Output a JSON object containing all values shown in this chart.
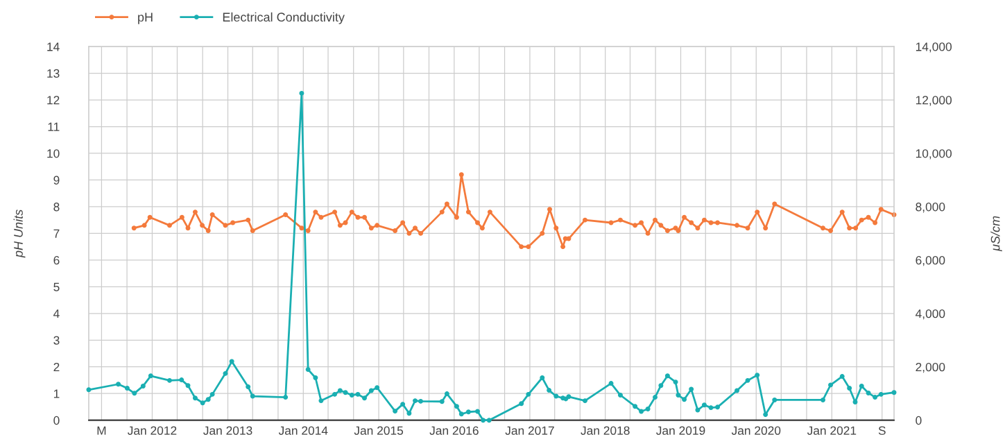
{
  "chart_data": {
    "type": "line",
    "ylabel": "pH Units",
    "y2label": "μS/cm",
    "xlim": [
      "2011-02-28",
      "2021-10-29"
    ],
    "xticks": [
      {
        "value": "2011-05",
        "label": "M"
      },
      {
        "value": "2011-09",
        "label": null
      },
      {
        "value": "2012",
        "label": "Jan 2012"
      },
      {
        "value": "2012-05",
        "label": null
      },
      {
        "value": "2012-09",
        "label": null
      },
      {
        "value": "2013",
        "label": "Jan 2013"
      },
      {
        "value": "2013-05",
        "label": null
      },
      {
        "value": "2013-09",
        "label": null
      },
      {
        "value": "2014",
        "label": "Jan 2014"
      },
      {
        "value": "2014-05",
        "label": null
      },
      {
        "value": "2014-09",
        "label": null
      },
      {
        "value": "2015",
        "label": "Jan 2015"
      },
      {
        "value": "2015-05",
        "label": null
      },
      {
        "value": "2015-09",
        "label": null
      },
      {
        "value": "2016",
        "label": "Jan 2016"
      },
      {
        "value": "2016-05",
        "label": null
      },
      {
        "value": "2016-09",
        "label": null
      },
      {
        "value": "2017",
        "label": "Jan 2017"
      },
      {
        "value": "2017-05",
        "label": null
      },
      {
        "value": "2017-09",
        "label": null
      },
      {
        "value": "2018",
        "label": "Jan 2018"
      },
      {
        "value": "2018-05",
        "label": null
      },
      {
        "value": "2018-09",
        "label": null
      },
      {
        "value": "2019",
        "label": "Jan 2019"
      },
      {
        "value": "2019-05",
        "label": null
      },
      {
        "value": "2019-09",
        "label": null
      },
      {
        "value": "2020",
        "label": "Jan 2020"
      },
      {
        "value": "2020-05",
        "label": null
      },
      {
        "value": "2020-09",
        "label": null
      },
      {
        "value": "2021",
        "label": "Jan 2021"
      },
      {
        "value": "2021-05",
        "label": null
      },
      {
        "value": "2021-09",
        "label": "S"
      }
    ],
    "ylim": [
      0,
      14
    ],
    "yticks": [
      0,
      1,
      2,
      3,
      4,
      5,
      6,
      7,
      8,
      9,
      10,
      11,
      12,
      13,
      14
    ],
    "y2lim": [
      0,
      14000
    ],
    "y2ticks": [
      {
        "value": 0,
        "label": "0"
      },
      {
        "value": 2000,
        "label": "2,000"
      },
      {
        "value": 4000,
        "label": "4,000"
      },
      {
        "value": 6000,
        "label": "6,000"
      },
      {
        "value": 8000,
        "label": "8,000"
      },
      {
        "value": 10000,
        "label": "10,000"
      },
      {
        "value": 12000,
        "label": "12,000"
      },
      {
        "value": 14000,
        "label": "14,000"
      }
    ],
    "grid": true,
    "legend": "top left",
    "marker": "circle",
    "line_style": "solid",
    "series": [
      {
        "name": "pH",
        "color": "#f47a3c",
        "x": [
          "2011-10-05",
          "2011-11-24",
          "2011-12-21",
          "2012-03-25",
          "2012-05-24",
          "2012-06-22",
          "2012-07-27",
          "2012-08-30",
          "2012-09-28",
          "2012-10-18",
          "2012-12-20",
          "2013-01-25",
          "2013-04-09",
          "2013-05-01",
          "2013-10-07",
          "2013-12-24",
          "2014-01-24",
          "2014-03-01",
          "2014-03-28",
          "2014-06-02",
          "2014-06-28",
          "2014-07-24",
          "2014-08-24",
          "2014-09-22",
          "2014-10-24",
          "2014-11-26",
          "2014-12-24",
          "2015-03-21",
          "2015-04-27",
          "2015-05-28",
          "2015-06-26",
          "2015-07-23",
          "2015-11-03",
          "2015-11-27",
          "2016-01-13",
          "2016-02-05",
          "2016-03-10",
          "2016-04-23",
          "2016-05-16",
          "2016-06-22",
          "2016-11-21",
          "2016-12-25",
          "2017-03-02",
          "2017-04-07",
          "2017-05-08",
          "2017-06-10",
          "2017-06-22",
          "2017-07-08",
          "2017-09-25",
          "2018-01-29",
          "2018-03-15",
          "2018-05-25",
          "2018-06-24",
          "2018-07-26",
          "2018-08-30",
          "2018-09-27",
          "2018-10-29",
          "2018-12-07",
          "2018-12-20",
          "2019-01-18",
          "2019-02-21",
          "2019-03-24",
          "2019-04-25",
          "2019-05-27",
          "2019-06-28",
          "2019-09-30",
          "2019-11-21",
          "2020-01-06",
          "2020-02-15",
          "2020-03-30",
          "2020-11-19",
          "2020-12-26",
          "2021-02-20",
          "2021-03-27",
          "2021-04-26",
          "2021-05-25",
          "2021-06-27",
          "2021-07-29",
          "2021-08-27",
          "2021-10-29"
        ],
        "values": [
          7.2,
          7.3,
          7.6,
          7.3,
          7.6,
          7.2,
          7.8,
          7.3,
          7.1,
          7.7,
          7.3,
          7.4,
          7.5,
          7.1,
          7.7,
          7.2,
          7.1,
          7.8,
          7.6,
          7.8,
          7.3,
          7.4,
          7.8,
          7.6,
          7.6,
          7.2,
          7.3,
          7.1,
          7.4,
          7.0,
          7.2,
          7.0,
          7.8,
          8.1,
          7.6,
          9.2,
          7.8,
          7.4,
          7.2,
          7.8,
          6.5,
          6.5,
          7.0,
          7.9,
          7.2,
          6.5,
          6.8,
          6.8,
          7.5,
          7.4,
          7.5,
          7.3,
          7.4,
          7.0,
          7.5,
          7.3,
          7.1,
          7.2,
          7.1,
          7.6,
          7.4,
          7.2,
          7.5,
          7.4,
          7.4,
          7.3,
          7.2,
          7.8,
          7.2,
          8.1,
          7.2,
          7.1,
          7.8,
          7.2,
          7.2,
          7.5,
          7.6,
          7.4,
          7.9,
          7.7
        ]
      },
      {
        "name": "Electrical Conductivity",
        "color": "#1aafb2",
        "axis": "y2",
        "x": [
          "2011-02-28",
          "2011-07-21",
          "2011-09-02",
          "2011-10-07",
          "2011-11-18",
          "2011-12-25",
          "2012-03-25",
          "2012-05-22",
          "2012-06-22",
          "2012-07-27",
          "2012-09-01",
          "2012-09-28",
          "2012-10-18",
          "2012-12-20",
          "2013-01-20",
          "2013-04-09",
          "2013-05-01",
          "2013-10-07",
          "2013-12-24",
          "2014-01-24",
          "2014-03-01",
          "2014-03-28",
          "2014-06-02",
          "2014-06-28",
          "2014-07-24",
          "2014-08-24",
          "2014-09-22",
          "2014-10-24",
          "2014-11-26",
          "2014-12-24",
          "2015-03-21",
          "2015-04-27",
          "2015-05-28",
          "2015-06-26",
          "2015-07-23",
          "2015-11-03",
          "2015-11-27",
          "2016-01-13",
          "2016-02-05",
          "2016-03-10",
          "2016-04-23",
          "2016-05-20",
          "2016-06-18",
          "2016-11-21",
          "2016-12-25",
          "2017-03-02",
          "2017-04-04",
          "2017-05-08",
          "2017-06-10",
          "2017-06-24",
          "2017-07-08",
          "2017-09-25",
          "2018-01-29",
          "2018-03-15",
          "2018-05-25",
          "2018-06-24",
          "2018-07-26",
          "2018-08-30",
          "2018-09-27",
          "2018-10-29",
          "2018-12-07",
          "2018-12-20",
          "2019-01-18",
          "2019-02-21",
          "2019-03-24",
          "2019-04-25",
          "2019-05-27",
          "2019-06-28",
          "2019-09-30",
          "2019-11-21",
          "2020-01-06",
          "2020-02-15",
          "2020-03-30",
          "2020-11-19",
          "2020-12-26",
          "2021-02-20",
          "2021-03-27",
          "2021-04-24",
          "2021-05-25",
          "2021-06-27",
          "2021-07-29",
          "2021-08-27",
          "2021-10-29"
        ],
        "values": [
          1140,
          1350,
          1200,
          1010,
          1280,
          1660,
          1490,
          1510,
          1300,
          830,
          650,
          780,
          970,
          1750,
          2200,
          1250,
          900,
          860,
          12250,
          1900,
          1590,
          730,
          970,
          1110,
          1040,
          940,
          970,
          830,
          1110,
          1220,
          340,
          600,
          260,
          730,
          710,
          700,
          990,
          520,
          230,
          310,
          330,
          0,
          0,
          620,
          970,
          1590,
          1120,
          900,
          830,
          800,
          880,
          730,
          1380,
          940,
          520,
          330,
          420,
          860,
          1300,
          1660,
          1430,
          940,
          780,
          1160,
          380,
          570,
          470,
          490,
          1110,
          1490,
          1690,
          210,
          760,
          760,
          1320,
          1640,
          1200,
          680,
          1280,
          1020,
          860,
          970,
          1040
        ]
      }
    ]
  }
}
